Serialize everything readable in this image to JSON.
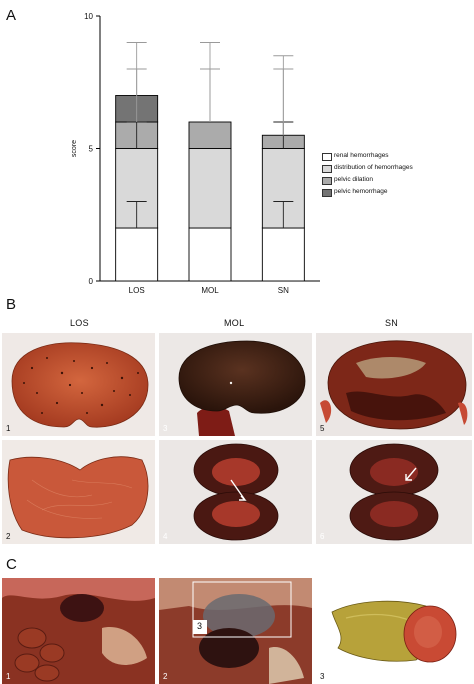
{
  "panels": {
    "a": "A",
    "b": "B",
    "c": "C"
  },
  "chart_data": {
    "type": "bar",
    "stacked": true,
    "categories": [
      "LOS",
      "MOL",
      "SN"
    ],
    "ylabel": "score",
    "ylim": [
      0,
      10
    ],
    "yticks": [
      0,
      5,
      10
    ],
    "grid": false,
    "legend_position": "right",
    "series": [
      {
        "name": "renal hemorrhages",
        "color": "#ffffff",
        "values": [
          2,
          2,
          2
        ],
        "error_upper": [
          3,
          null,
          3
        ]
      },
      {
        "name": "distribution of hemorrhages",
        "color": "#d9d9d9",
        "values": [
          3,
          3,
          3
        ],
        "error_upper": [
          6,
          null,
          6
        ]
      },
      {
        "name": "pelvic dilation",
        "color": "#ababab",
        "values": [
          1,
          1,
          0.5
        ],
        "error_upper": [
          8,
          8,
          8
        ]
      },
      {
        "name": "pelvic hemorrhage",
        "color": "#747474",
        "values": [
          1,
          0,
          0
        ],
        "error_upper": [
          9,
          9,
          8.5
        ]
      }
    ]
  },
  "panel_b": {
    "headers": [
      "LOS",
      "MOL",
      "SN"
    ],
    "labels": [
      "1",
      "2",
      "3",
      "4",
      "5",
      "6"
    ]
  },
  "panel_c": {
    "labels": [
      "1",
      "2",
      "3"
    ],
    "inset_label": "3"
  }
}
